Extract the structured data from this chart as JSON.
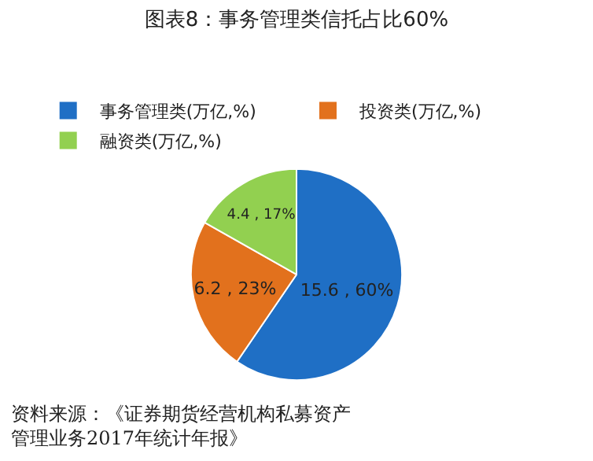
{
  "chart_data": {
    "type": "pie",
    "title": "图表8：事务管理类信托占比60%",
    "categories": [
      "事务管理类(万亿,%)",
      "投资类(万亿,%)",
      "融资类(万亿,%)"
    ],
    "values": [
      15.6,
      6.2,
      4.4
    ],
    "colors": [
      "#1f6fc5",
      "#e2711d",
      "#92d050"
    ],
    "value_labels": [
      "15.6 , 60%",
      "6.2 , 23%",
      "4.4 , 17%"
    ],
    "legend": "top",
    "annotations": [
      "资料来源：《证券期货经营机构私募资产管理业务2017年统计年报》"
    ]
  }
}
